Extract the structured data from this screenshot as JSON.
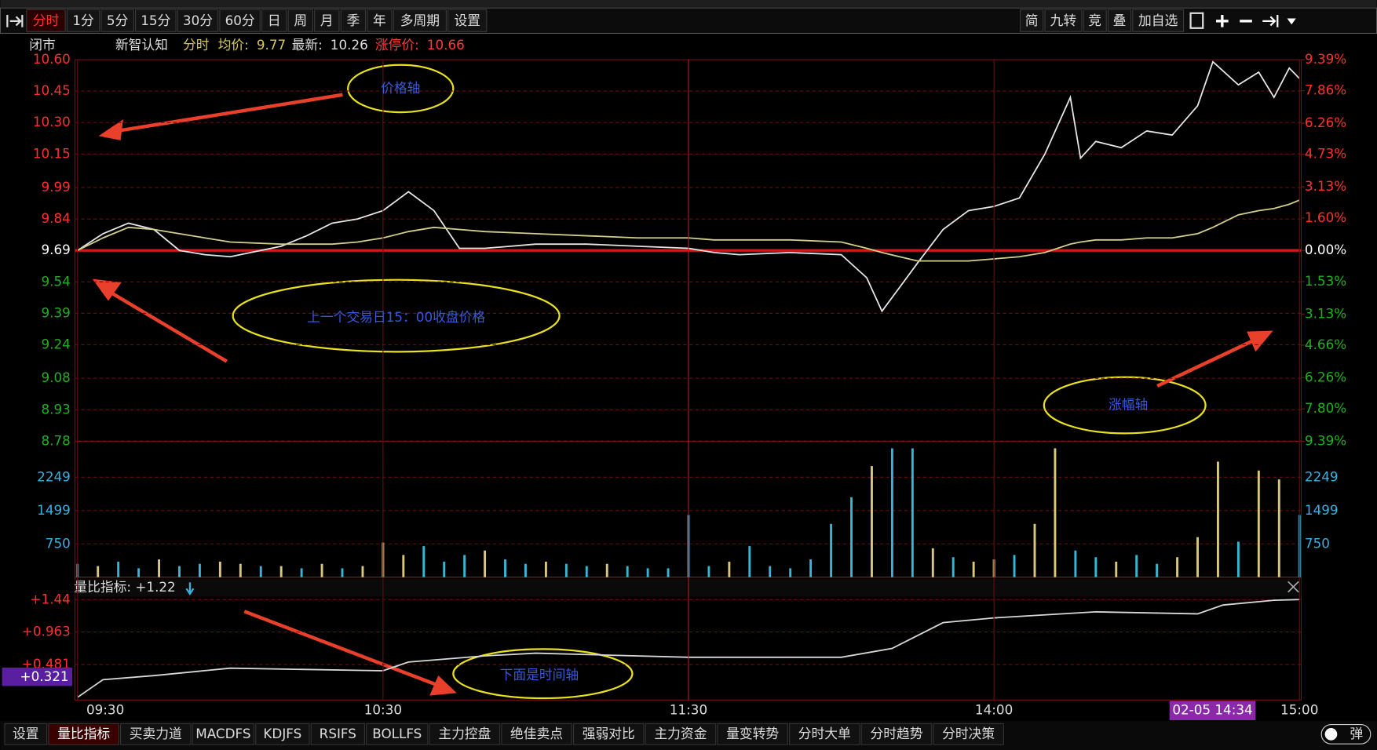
{
  "toolbar": {
    "tabs": [
      "分时",
      "1分",
      "5分",
      "15分",
      "30分",
      "60分",
      "日",
      "周",
      "月",
      "季",
      "年",
      "多周期",
      "设置"
    ],
    "right": [
      "简",
      "九转",
      "竞",
      "叠",
      "加自选"
    ]
  },
  "info": {
    "status": "闭市",
    "name": "新智认知",
    "mode": "分时",
    "avg_label": "均价:",
    "avg": 9.77,
    "latest_label": "最新:",
    "latest": 10.26,
    "limit_label": "涨停价:",
    "limit": 10.66
  },
  "chart_data": [
    {
      "type": "line",
      "x": [
        0,
        5,
        10,
        15,
        20,
        25,
        30,
        40,
        45,
        50,
        55,
        60,
        65,
        70,
        75,
        80,
        90,
        100,
        110,
        120,
        125,
        130,
        140,
        150,
        155,
        158,
        165,
        170,
        175,
        180,
        185,
        190,
        195,
        197,
        200,
        205,
        210,
        215,
        220,
        223,
        228,
        232,
        235,
        238,
        240
      ],
      "series": [
        {
          "color": "#e6e6e6",
          "values": [
            9.69,
            9.77,
            9.82,
            9.79,
            9.69,
            9.67,
            9.66,
            9.71,
            9.76,
            9.82,
            9.84,
            9.88,
            9.97,
            9.88,
            9.7,
            9.7,
            9.72,
            9.72,
            9.71,
            9.7,
            9.68,
            9.67,
            9.68,
            9.67,
            9.56,
            9.4,
            9.63,
            9.79,
            9.88,
            9.9,
            9.94,
            10.15,
            10.42,
            10.13,
            10.21,
            10.18,
            10.26,
            10.24,
            10.38,
            10.59,
            10.48,
            10.54,
            10.42,
            10.56,
            10.51
          ]
        },
        {
          "color": "#d2cf8c",
          "values": [
            9.69,
            9.75,
            9.8,
            9.79,
            9.77,
            9.75,
            9.73,
            9.72,
            9.72,
            9.72,
            9.73,
            9.75,
            9.78,
            9.8,
            9.79,
            9.78,
            9.77,
            9.76,
            9.75,
            9.75,
            9.74,
            9.74,
            9.74,
            9.73,
            9.7,
            9.68,
            9.64,
            9.64,
            9.64,
            9.65,
            9.66,
            9.68,
            9.72,
            9.73,
            9.74,
            9.74,
            9.75,
            9.75,
            9.77,
            9.8,
            9.86,
            9.88,
            9.89,
            9.91,
            9.93
          ]
        }
      ],
      "xlim": [
        0,
        240
      ],
      "ylim": [
        8.78,
        10.6
      ],
      "yticks": [
        {
          "value": 10.6,
          "label": "10.60"
        },
        10.45,
        {
          "value": 10.3,
          "label": "10.30"
        },
        10.15,
        9.99,
        9.84,
        9.69,
        9.54,
        9.39,
        9.24,
        9.08,
        8.93,
        8.78
      ],
      "y2lim": [
        -9.39,
        9.39
      ],
      "y2ticks": [
        {
          "value": 9.39,
          "label": "9.39%"
        },
        {
          "value": 7.86,
          "label": "7.86%"
        },
        {
          "value": 6.26,
          "label": "6.26%"
        },
        {
          "value": 4.73,
          "label": "4.73%"
        },
        {
          "value": 3.13,
          "label": "3.13%"
        },
        {
          "value": 1.6,
          "label": "1.60%"
        },
        {
          "value": 0,
          "label": "0.00%"
        },
        {
          "value": -1.53,
          "label": "1.53%"
        },
        {
          "value": -3.13,
          "label": "3.13%"
        },
        {
          "value": -4.66,
          "label": "4.66%"
        },
        {
          "value": -6.26,
          "label": "6.26%"
        },
        {
          "value": -7.8,
          "label": "7.80%"
        },
        {
          "value": -9.39,
          "label": "9.39%"
        }
      ],
      "ref_line": 9.69,
      "grid": true
    },
    {
      "type": "bar",
      "x": [
        0,
        4,
        8,
        12,
        16,
        20,
        24,
        28,
        32,
        36,
        40,
        44,
        48,
        52,
        56,
        60,
        64,
        68,
        72,
        76,
        80,
        84,
        88,
        92,
        96,
        100,
        104,
        108,
        112,
        116,
        120,
        124,
        128,
        132,
        136,
        140,
        144,
        148,
        152,
        156,
        160,
        164,
        168,
        172,
        176,
        180,
        184,
        188,
        192,
        196,
        200,
        204,
        208,
        212,
        216,
        220,
        224,
        228,
        232,
        236,
        240
      ],
      "values": [
        300,
        250,
        350,
        200,
        400,
        250,
        300,
        350,
        300,
        250,
        250,
        200,
        300,
        200,
        250,
        780,
        500,
        700,
        350,
        500,
        600,
        400,
        300,
        350,
        300,
        250,
        300,
        250,
        200,
        200,
        1400,
        250,
        350,
        700,
        250,
        200,
        400,
        1200,
        1800,
        2500,
        2900,
        2900,
        650,
        450,
        350,
        400,
        500,
        1200,
        2900,
        600,
        450,
        350,
        500,
        300,
        450,
        900,
        2600,
        800,
        2400,
        2200,
        1400
      ],
      "colors": [
        "#35b6d6",
        "#d8c77f",
        "#35b6d6",
        "#35b6d6",
        "#d8c77f",
        "#35b6d6",
        "#35b6d6",
        "#d8c77f",
        "#d8c77f",
        "#35b6d6",
        "#d8c77f",
        "#35b6d6",
        "#d8c77f",
        "#35b6d6",
        "#d8c77f",
        "#d8c77f",
        "#d8c77f",
        "#35b6d6",
        "#35b6d6",
        "#35b6d6",
        "#d8c77f",
        "#35b6d6",
        "#35b6d6",
        "#d8c77f",
        "#35b6d6",
        "#35b6d6",
        "#d8c77f",
        "#35b6d6",
        "#35b6d6",
        "#35b6d6",
        "#35b6d6",
        "#35b6d6",
        "#d8c77f",
        "#35b6d6",
        "#35b6d6",
        "#35b6d6",
        "#35b6d6",
        "#35b6d6",
        "#35b6d6",
        "#d8c77f",
        "#35b6d6",
        "#35b6d6",
        "#d8c77f",
        "#35b6d6",
        "#d8c77f",
        "#d8c77f",
        "#35b6d6",
        "#d8c77f",
        "#d8c77f",
        "#35b6d6",
        "#35b6d6",
        "#d8c77f",
        "#35b6d6",
        "#35b6d6",
        "#d8c77f",
        "#d8c77f",
        "#d8c77f",
        "#35b6d6",
        "#d8c77f",
        "#d8c77f",
        "#35b6d6"
      ],
      "xlim": [
        0,
        240
      ],
      "ylim": [
        0,
        3060
      ],
      "yticks": [
        750,
        1499,
        2249
      ],
      "grid": true
    },
    {
      "type": "line",
      "title": "量比指标: +1.22",
      "x": [
        0,
        5,
        15,
        30,
        60,
        65,
        80,
        90,
        120,
        150,
        160,
        170,
        180,
        200,
        220,
        225,
        235,
        240
      ],
      "series": [
        {
          "color": "#d8d8d8",
          "values": [
            0,
            0.26,
            0.32,
            0.43,
            0.39,
            0.52,
            0.61,
            0.65,
            0.59,
            0.59,
            0.72,
            1.1,
            1.17,
            1.26,
            1.23,
            1.36,
            1.43,
            1.44
          ]
        }
      ],
      "xlim": [
        0,
        240
      ],
      "ylim": [
        -0.04,
        1.46
      ],
      "yticks": [
        {
          "value": 1.44,
          "label": "+1.44"
        },
        {
          "value": 0.963,
          "label": "+0.963"
        },
        {
          "value": 0.481,
          "label": "+0.481"
        }
      ],
      "xticks": [
        {
          "value": 0,
          "label": "09:30"
        },
        {
          "value": 60,
          "label": "10:30"
        },
        {
          "value": 120,
          "label": "11:30"
        },
        {
          "value": 180,
          "label": "14:00"
        },
        {
          "value": 240,
          "label": "15:00"
        }
      ],
      "cursor_label": "+0.321",
      "grid": true
    }
  ],
  "cursor": {
    "time": "02-05 14:34"
  },
  "annotations": [
    "价格轴",
    "上一个交易日15：00收盘价格",
    "涨幅轴",
    "下面是时间轴"
  ],
  "bottom_bar": {
    "tabs": [
      "设置",
      "量比指标",
      "买卖力道",
      "MACDFS",
      "KDJFS",
      "RSIFS",
      "BOLLFS",
      "主力控盘",
      "绝佳卖点",
      "强弱对比",
      "主力资金",
      "量变转势",
      "分时大单",
      "分时趋势",
      "分时决策"
    ],
    "active": 1,
    "toggle": "弹"
  }
}
